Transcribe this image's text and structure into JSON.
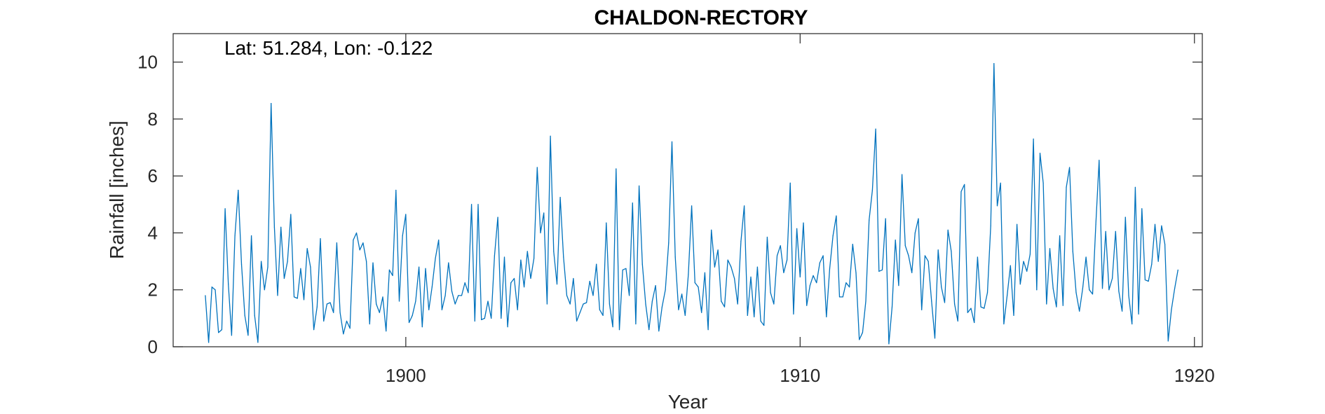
{
  "chart_data": {
    "type": "line",
    "title": "CHALDON-RECTORY",
    "annotation": "Lat: 51.284, Lon: -0.122",
    "xlabel": "Year",
    "ylabel": "Rainfall [inches]",
    "xlim": [
      1894.1,
      1920.2
    ],
    "ylim": [
      0,
      11
    ],
    "xticks": [
      1900,
      1910,
      1920
    ],
    "yticks": [
      0,
      2,
      4,
      6,
      8,
      10
    ],
    "grid": false,
    "line_color": "#0072BD",
    "start_year": 1894,
    "start_month": 12,
    "series": [
      {
        "values": [
          1.8,
          0.15,
          2.1,
          2.0,
          0.5,
          0.6,
          4.85,
          2.2,
          0.4,
          3.9,
          5.5,
          2.9,
          1.1,
          0.4,
          3.9,
          1.1,
          0.15,
          3.0,
          2.0,
          2.8,
          8.55,
          4.2,
          1.8,
          4.2,
          2.4,
          3.0,
          4.65,
          1.75,
          1.7,
          2.75,
          1.65,
          3.45,
          2.8,
          0.6,
          1.4,
          3.8,
          0.9,
          1.5,
          1.55,
          1.2,
          3.65,
          1.2,
          0.45,
          0.9,
          0.65,
          3.75,
          4.0,
          3.4,
          3.65,
          3.0,
          0.8,
          2.95,
          1.5,
          1.2,
          1.75,
          0.55,
          2.7,
          2.5,
          5.5,
          1.6,
          3.9,
          4.65,
          0.85,
          1.1,
          1.6,
          2.8,
          0.7,
          2.75,
          1.3,
          2.1,
          3.1,
          3.75,
          1.3,
          1.8,
          2.95,
          1.95,
          1.5,
          1.8,
          1.8,
          2.25,
          1.9,
          5.0,
          0.9,
          5.0,
          0.95,
          1.0,
          1.6,
          1.0,
          3.2,
          4.55,
          1.0,
          3.15,
          0.7,
          2.25,
          2.4,
          1.3,
          3.05,
          2.1,
          3.35,
          2.4,
          3.1,
          6.3,
          4.0,
          4.7,
          1.5,
          7.4,
          3.35,
          2.2,
          5.25,
          3.15,
          1.8,
          1.5,
          2.4,
          0.9,
          1.2,
          1.5,
          1.55,
          2.3,
          1.8,
          2.9,
          1.3,
          1.1,
          4.35,
          1.5,
          0.7,
          6.25,
          0.6,
          2.7,
          2.75,
          1.8,
          5.05,
          0.8,
          5.65,
          2.9,
          1.5,
          0.6,
          1.6,
          2.15,
          0.55,
          1.4,
          2.0,
          3.65,
          7.2,
          3.15,
          1.3,
          1.85,
          1.1,
          2.55,
          4.95,
          2.25,
          2.1,
          1.2,
          2.6,
          0.6,
          4.1,
          2.8,
          3.4,
          1.6,
          1.4,
          3.05,
          2.8,
          2.4,
          1.5,
          3.7,
          4.95,
          1.1,
          2.45,
          1.05,
          2.8,
          0.9,
          0.75,
          3.85,
          1.9,
          1.5,
          3.2,
          3.55,
          2.6,
          3.05,
          5.75,
          1.15,
          4.15,
          2.45,
          4.35,
          1.45,
          2.15,
          2.5,
          2.25,
          2.95,
          3.2,
          1.05,
          2.75,
          3.9,
          4.6,
          1.75,
          1.75,
          2.25,
          2.1,
          3.6,
          2.6,
          0.25,
          0.5,
          1.6,
          4.45,
          5.5,
          7.65,
          2.65,
          2.7,
          4.5,
          0.1,
          1.4,
          3.75,
          2.15,
          6.05,
          3.55,
          3.2,
          2.6,
          4.0,
          4.5,
          1.3,
          3.2,
          3.0,
          1.6,
          0.3,
          3.4,
          2.1,
          1.55,
          4.1,
          3.35,
          1.5,
          0.9,
          5.45,
          5.7,
          1.2,
          1.35,
          0.85,
          3.15,
          1.4,
          1.35,
          1.9,
          4.25,
          9.95,
          4.95,
          5.75,
          0.8,
          1.8,
          2.85,
          1.1,
          4.3,
          2.2,
          3.0,
          2.65,
          3.25,
          7.3,
          2.0,
          6.8,
          5.75,
          1.5,
          3.45,
          2.05,
          1.4,
          3.9,
          1.45,
          5.6,
          6.3,
          3.35,
          1.9,
          1.25,
          2.05,
          3.15,
          2.0,
          1.85,
          4.3,
          6.55,
          2.05,
          4.05,
          2.0,
          2.4,
          4.05,
          1.95,
          1.25,
          4.55,
          1.8,
          0.8,
          5.6,
          1.15,
          4.85,
          2.35,
          2.3,
          2.9,
          4.3,
          3.0,
          4.25,
          3.6,
          0.2,
          1.3,
          2.05,
          2.7
        ]
      }
    ]
  }
}
